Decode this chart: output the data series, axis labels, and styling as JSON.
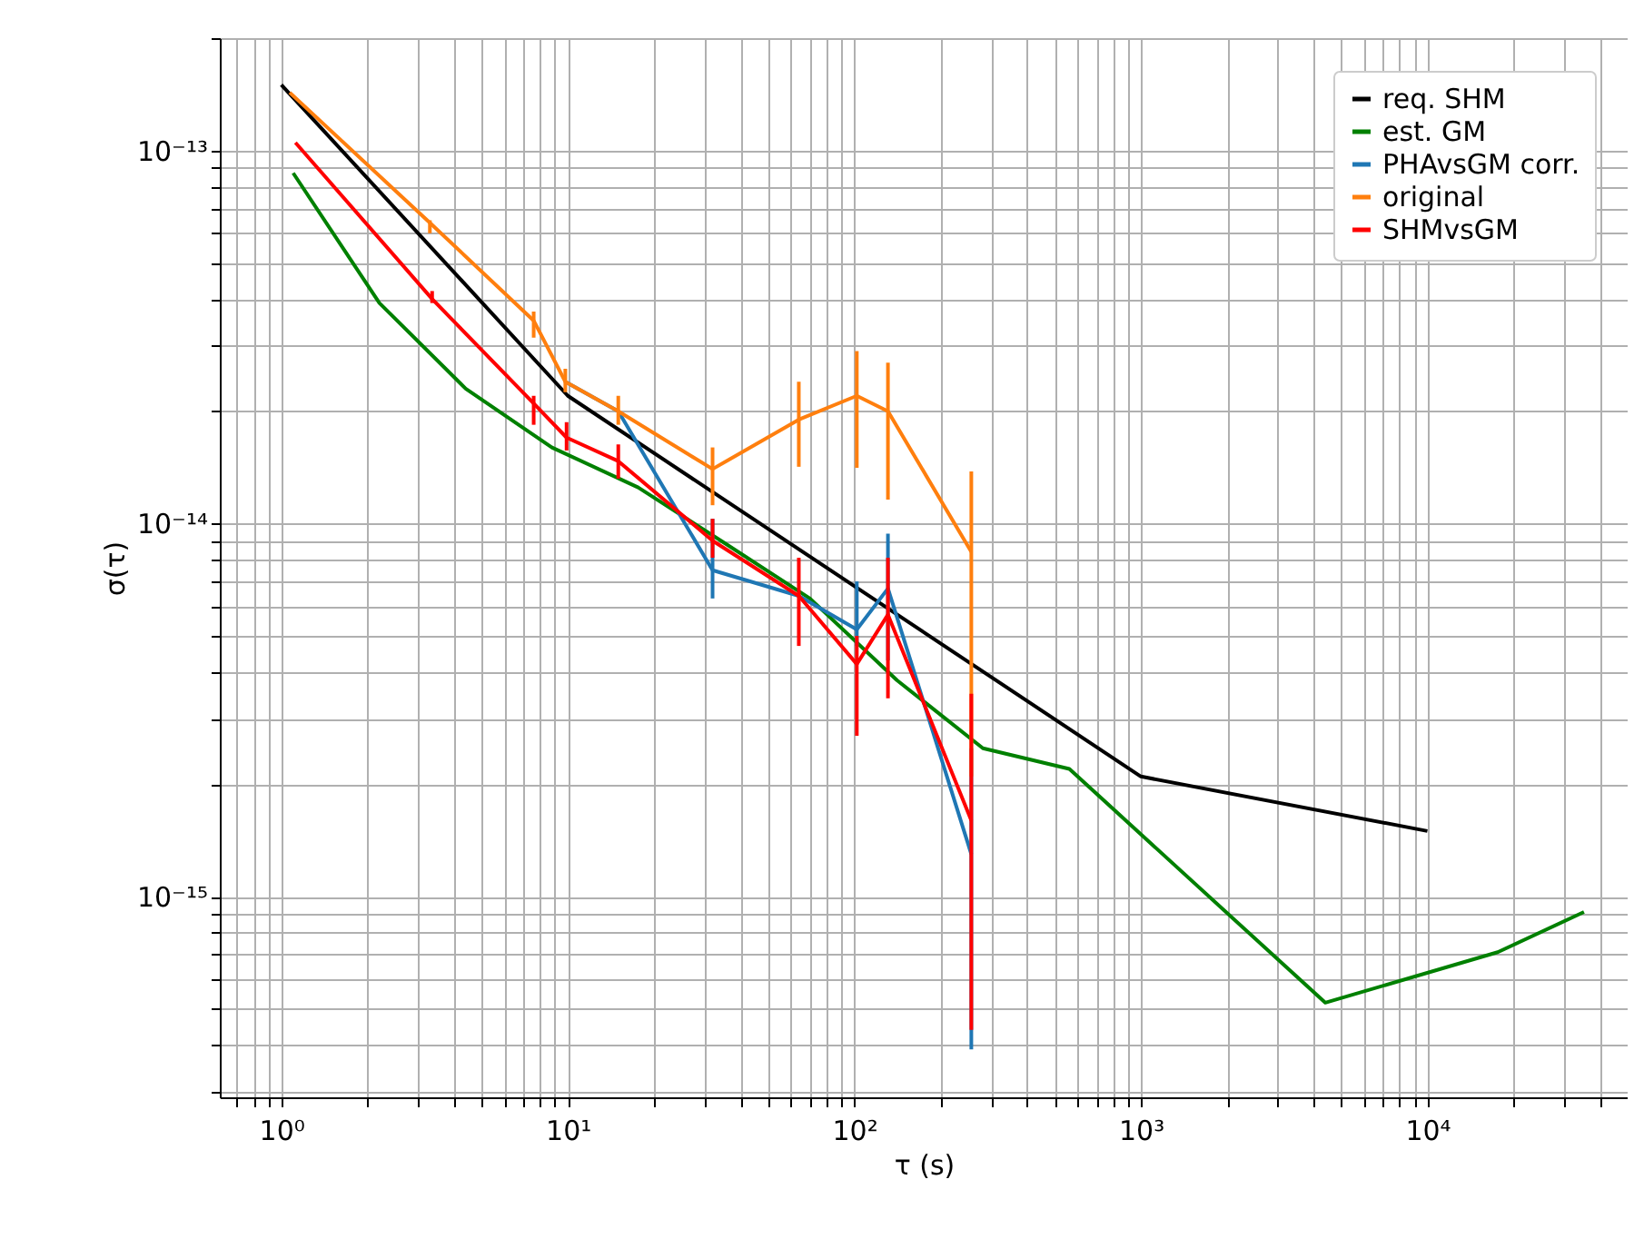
{
  "chart_data": {
    "type": "line",
    "xlabel": "τ (s)",
    "ylabel": "σ(τ)",
    "log": "xy",
    "grid": true,
    "legend": "top right",
    "marker": "none",
    "line_style": "solid",
    "xlim": [
      0.61,
      50000
    ],
    "ylim": [
      2.9e-16,
      2e-13
    ],
    "xticks": [
      {
        "value": 0.7,
        "label": null
      },
      {
        "value": 0.8,
        "label": null
      },
      {
        "value": 0.9,
        "label": null
      },
      {
        "value": 1,
        "label": "10⁰"
      },
      {
        "value": 2,
        "label": null
      },
      {
        "value": 3,
        "label": null
      },
      {
        "value": 4,
        "label": null
      },
      {
        "value": 5,
        "label": null
      },
      {
        "value": 6,
        "label": null
      },
      {
        "value": 7,
        "label": null
      },
      {
        "value": 8,
        "label": null
      },
      {
        "value": 9,
        "label": null
      },
      {
        "value": 10,
        "label": "10¹"
      },
      {
        "value": 20,
        "label": null
      },
      {
        "value": 30,
        "label": null
      },
      {
        "value": 40,
        "label": null
      },
      {
        "value": 50,
        "label": null
      },
      {
        "value": 60,
        "label": null
      },
      {
        "value": 70,
        "label": null
      },
      {
        "value": 80,
        "label": null
      },
      {
        "value": 90,
        "label": null
      },
      {
        "value": 100,
        "label": "10²"
      },
      {
        "value": 200,
        "label": null
      },
      {
        "value": 300,
        "label": null
      },
      {
        "value": 400,
        "label": null
      },
      {
        "value": 500,
        "label": null
      },
      {
        "value": 600,
        "label": null
      },
      {
        "value": 700,
        "label": null
      },
      {
        "value": 800,
        "label": null
      },
      {
        "value": 900,
        "label": null
      },
      {
        "value": 1000,
        "label": "10³"
      },
      {
        "value": 2000,
        "label": null
      },
      {
        "value": 3000,
        "label": null
      },
      {
        "value": 4000,
        "label": null
      },
      {
        "value": 5000,
        "label": null
      },
      {
        "value": 6000,
        "label": null
      },
      {
        "value": 7000,
        "label": null
      },
      {
        "value": 8000,
        "label": null
      },
      {
        "value": 9000,
        "label": null
      },
      {
        "value": 10000,
        "label": "10⁴"
      },
      {
        "value": 20000,
        "label": null
      },
      {
        "value": 30000,
        "label": null
      },
      {
        "value": 40000,
        "label": null
      }
    ],
    "yticks": [
      {
        "value": 3e-16,
        "label": null
      },
      {
        "value": 4e-16,
        "label": null
      },
      {
        "value": 5e-16,
        "label": null
      },
      {
        "value": 6e-16,
        "label": null
      },
      {
        "value": 7e-16,
        "label": null
      },
      {
        "value": 8e-16,
        "label": null
      },
      {
        "value": 9e-16,
        "label": null
      },
      {
        "value": 1e-15,
        "label": "10⁻¹⁵"
      },
      {
        "value": 2e-15,
        "label": null
      },
      {
        "value": 3e-15,
        "label": null
      },
      {
        "value": 4e-15,
        "label": null
      },
      {
        "value": 5e-15,
        "label": null
      },
      {
        "value": 6e-15,
        "label": null
      },
      {
        "value": 7e-15,
        "label": null
      },
      {
        "value": 8e-15,
        "label": null
      },
      {
        "value": 9e-15,
        "label": null
      },
      {
        "value": 1e-14,
        "label": "10⁻¹⁴"
      },
      {
        "value": 2e-14,
        "label": null
      },
      {
        "value": 3e-14,
        "label": null
      },
      {
        "value": 4e-14,
        "label": null
      },
      {
        "value": 5e-14,
        "label": null
      },
      {
        "value": 6e-14,
        "label": null
      },
      {
        "value": 7e-14,
        "label": null
      },
      {
        "value": 8e-14,
        "label": null
      },
      {
        "value": 9e-14,
        "label": null
      },
      {
        "value": 1e-13,
        "label": "10⁻¹³"
      },
      {
        "value": 2e-13,
        "label": null
      }
    ],
    "series": [
      {
        "name": "req. SHM",
        "color": "#000000",
        "x": [
          1,
          10,
          1000,
          10000
        ],
        "values": [
          1.5e-13,
          2.2e-14,
          2.1e-15,
          1.5e-15
        ]
      },
      {
        "name": "est. GM",
        "color": "#008000",
        "x": [
          1.1,
          2.2,
          4.4,
          8.8,
          17.6,
          35,
          70,
          141,
          281,
          563,
          4400,
          17600,
          35200
        ],
        "values": [
          8.7e-14,
          3.9e-14,
          2.3e-14,
          1.6e-14,
          1.25e-14,
          8.9e-15,
          6.3e-15,
          3.8e-15,
          2.5e-15,
          2.2e-15,
          5.2e-16,
          7.1e-16,
          9.1e-16
        ]
      },
      {
        "name": "PHAvsGM corr.",
        "color": "#1f77b4",
        "x": [
          9.8,
          15,
          32,
          64,
          102,
          131,
          256
        ],
        "values": [
          2.4e-14,
          2e-14,
          7.5e-15,
          6.4e-15,
          5.2e-15,
          6.7e-15,
          1.3e-15
        ],
        "errors": [
          null,
          null,
          [
            6.3e-15,
            1.03e-14
          ],
          null,
          [
            4.7e-15,
            7e-15
          ],
          [
            4.3e-15,
            9.4e-15
          ],
          [
            3.9e-16,
            2.5e-15
          ]
        ]
      },
      {
        "name": "original",
        "color": "#ff7f0e",
        "x": [
          1.07,
          3.3,
          7.6,
          9.8,
          15,
          32,
          64,
          102,
          131,
          256
        ],
        "values": [
          1.43e-13,
          6.4e-14,
          3.5e-14,
          2.4e-14,
          2e-14,
          1.4e-14,
          1.9e-14,
          2.2e-14,
          2e-14,
          8.4e-15
        ],
        "errors": [
          null,
          [
            6e-14,
            6.5e-14
          ],
          [
            3.15e-14,
            3.7e-14
          ],
          [
            2.25e-14,
            2.6e-14
          ],
          [
            1.84e-14,
            2.2e-14
          ],
          [
            1.12e-14,
            1.6e-14
          ],
          [
            1.42e-14,
            2.4e-14
          ],
          [
            1.41e-14,
            2.9e-14
          ],
          [
            1.16e-14,
            2.7e-14
          ],
          [
            2.1e-15,
            1.38e-14
          ]
        ]
      },
      {
        "name": "SHMvsGM",
        "color": "#ff0000",
        "x": [
          1.12,
          3.36,
          7.6,
          9.9,
          15,
          32,
          64,
          102,
          131,
          256
        ],
        "values": [
          1.05e-13,
          4e-14,
          2.1e-14,
          1.7e-14,
          1.47e-14,
          9e-15,
          6.4e-15,
          4.2e-15,
          5.7e-15,
          1.6e-15
        ],
        "errors": [
          null,
          [
            3.9e-14,
            4.2e-14
          ],
          [
            1.84e-14,
            2.2e-14
          ],
          [
            1.57e-14,
            1.87e-14
          ],
          [
            1.32e-14,
            1.63e-14
          ],
          [
            8.1e-15,
            1.03e-14
          ],
          [
            4.7e-15,
            8.1e-15
          ],
          [
            2.7e-15,
            5e-15
          ],
          [
            3.4e-15,
            8.1e-15
          ],
          [
            4.4e-16,
            3.5e-15
          ]
        ]
      }
    ]
  }
}
